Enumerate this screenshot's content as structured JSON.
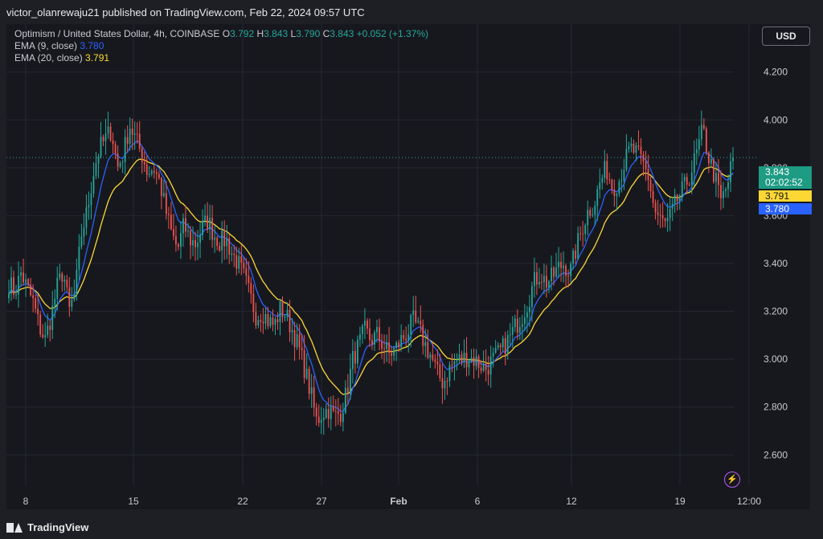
{
  "header": {
    "publisher_line": "victor_olanrewaju21 published on TradingView.com, Feb 22, 2024 09:57 UTC"
  },
  "legend": {
    "symbol": "Optimism / United States Dollar, 4h, COINBASE",
    "o_label": "O",
    "o_value": "3.792",
    "h_label": "H",
    "h_value": "3.843",
    "l_label": "L",
    "l_value": "3.790",
    "c_label": "C",
    "c_value": "3.843",
    "change": "+0.052 (+1.37%)",
    "ema9_label": "EMA (9, close)",
    "ema9_value": "3.780",
    "ema20_label": "EMA (20, close)",
    "ema20_value": "3.791"
  },
  "currency_button": "USD",
  "price_tags": {
    "close": "3.843",
    "countdown": "02:02:52",
    "ema20": "3.791",
    "ema9": "3.780"
  },
  "footer": {
    "brand": "TradingView"
  },
  "colors": {
    "up": "#26a69a",
    "down": "#ef5350",
    "ema9": "#2962ff",
    "ema20": "#fdd835",
    "background": "#17181e"
  },
  "chart_data": {
    "type": "candlestick",
    "interval": "4h",
    "ylim": [
      2.48,
      4.32
    ],
    "y_ticks": [
      "2.600",
      "2.800",
      "3.000",
      "3.200",
      "3.400",
      "3.600",
      "3.800",
      "4.000",
      "4.200"
    ],
    "x_ticks": [
      "8",
      "15",
      "22",
      "27",
      "Feb",
      "6",
      "12",
      "19",
      "12:00"
    ],
    "last_price": 3.843,
    "approx_close_path": [
      3.32,
      3.28,
      3.36,
      3.3,
      3.24,
      3.14,
      3.08,
      3.18,
      3.3,
      3.37,
      3.2,
      3.28,
      3.52,
      3.62,
      3.78,
      3.88,
      3.92,
      3.96,
      3.8,
      3.86,
      3.98,
      3.92,
      3.86,
      3.78,
      3.8,
      3.74,
      3.62,
      3.52,
      3.46,
      3.56,
      3.5,
      3.48,
      3.55,
      3.58,
      3.52,
      3.49,
      3.5,
      3.44,
      3.4,
      3.34,
      3.26,
      3.18,
      3.2,
      3.16,
      3.14,
      3.21,
      3.18,
      3.12,
      3.05,
      2.96,
      2.86,
      2.74,
      2.78,
      2.79,
      2.76,
      2.78,
      2.86,
      3.0,
      3.06,
      3.12,
      3.08,
      3.1,
      3.06,
      3.02,
      3.04,
      3.08,
      3.11,
      3.16,
      3.12,
      3.06,
      3.01,
      2.94,
      2.9,
      2.96,
      2.99,
      3.0,
      3.01,
      3.0,
      2.98,
      2.96,
      2.99,
      3.02,
      3.05,
      3.09,
      3.14,
      3.18,
      3.24,
      3.32,
      3.36,
      3.32,
      3.34,
      3.38,
      3.4,
      3.36,
      3.46,
      3.55,
      3.62,
      3.65,
      3.74,
      3.8,
      3.72,
      3.74,
      3.82,
      3.88,
      3.86,
      3.82,
      3.76,
      3.62,
      3.58,
      3.56,
      3.62,
      3.68,
      3.72,
      3.78,
      3.86,
      3.96,
      3.84,
      3.76,
      3.66,
      3.72,
      3.843
    ]
  }
}
